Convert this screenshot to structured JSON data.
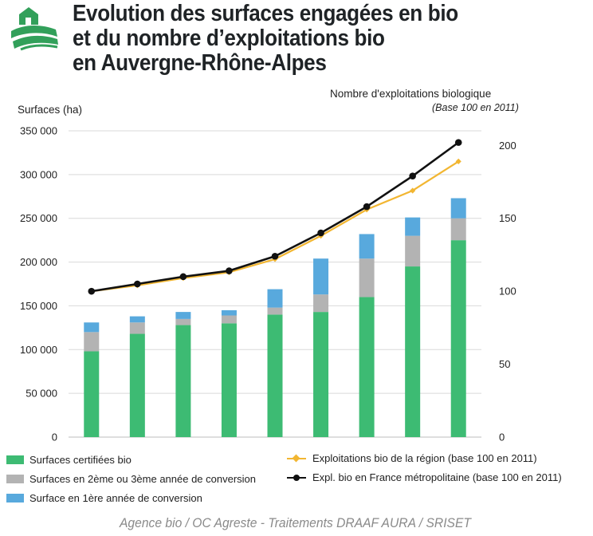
{
  "header": {
    "title_line1": "Evolution des surfaces engagées en bio",
    "title_line2": "et du nombre d’exploitations bio",
    "title_line3": "en Auvergne-Rhône-Alpes"
  },
  "colors": {
    "certified": "#3dbb73",
    "conversion_2_3": "#b3b3b3",
    "conversion_1": "#58a9dd",
    "line_region": "#f2b631",
    "line_france": "#111111",
    "logo_green": "#32a05a",
    "source_text": "#8a8a8a"
  },
  "logo": {
    "icon": "farm-house-field-icon"
  },
  "source": "Agence bio / OC Agreste - Traitements DRAAF AURA / SRISET",
  "chart_data": {
    "type": "bar",
    "stacked": true,
    "xlabel": "",
    "ylabel": "Surfaces (ha)",
    "y2label": "Nombre d'exploitations biologique",
    "y2label_sub": "(Base 100 en 2011)",
    "ylim": [
      0,
      350000
    ],
    "y2lim": [
      0,
      210
    ],
    "yticks": [
      0,
      50000,
      100000,
      150000,
      200000,
      250000,
      300000,
      350000
    ],
    "ytick_labels": [
      "0",
      "50 000",
      "100 000",
      "150 000",
      "200 000",
      "250 000",
      "300 000",
      "350 000"
    ],
    "y2ticks": [
      0,
      50,
      100,
      150,
      200
    ],
    "y2tick_labels": [
      "0",
      "50",
      "100",
      "150",
      "200"
    ],
    "grid": true,
    "legend_position": "bottom",
    "category_count": 9,
    "series": [
      {
        "name": "Surfaces certifiées bio",
        "kind": "bar",
        "color": "#3dbb73",
        "values": [
          98000,
          118000,
          128000,
          130000,
          140000,
          143000,
          160000,
          195000,
          225000
        ]
      },
      {
        "name": "Surfaces en 2ème ou 3ème année de conversion",
        "kind": "bar",
        "color": "#b3b3b3",
        "values": [
          22000,
          13000,
          7000,
          9000,
          8000,
          20000,
          44000,
          35000,
          25000
        ]
      },
      {
        "name": "Surface en 1ère année de conversion",
        "kind": "bar",
        "color": "#58a9dd",
        "values": [
          11000,
          7000,
          8000,
          6000,
          21000,
          41000,
          28000,
          21000,
          23000
        ]
      },
      {
        "name": "Exploitations bio de la région (base 100 en 2011)",
        "kind": "line",
        "axis": "right",
        "marker": "diamond",
        "color": "#f2b631",
        "values": [
          100,
          104,
          109,
          113,
          122,
          138,
          156,
          169,
          189
        ]
      },
      {
        "name": "Expl. bio en France métropolitaine (base 100 en 2011)",
        "kind": "line",
        "axis": "right",
        "marker": "circle",
        "color": "#111111",
        "values": [
          100,
          105,
          110,
          114,
          124,
          140,
          158,
          179,
          202
        ]
      }
    ]
  }
}
